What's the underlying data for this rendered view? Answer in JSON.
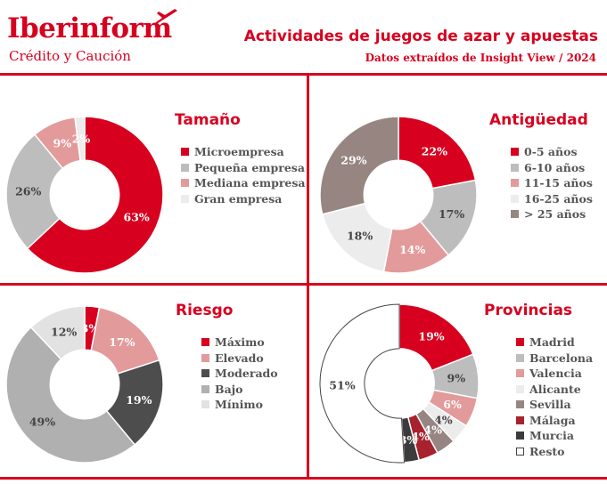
{
  "header": {
    "brand": "Iberinform",
    "brand_sub": "Crédito y Caución",
    "title": "Actividades de juegos de azar y apuestas",
    "subtitle": "Datos extraídos de Insight View / 2024"
  },
  "colors": {
    "accent": "#d7001f"
  },
  "chart_data": [
    {
      "type": "pie",
      "title": "Tamaño",
      "categories": [
        "Microempresa",
        "Pequeña empresa",
        "Mediana empresa",
        "Gran empresa"
      ],
      "values": [
        63,
        26,
        9,
        2
      ],
      "labels": [
        "63%",
        "26%",
        "9%",
        "2%"
      ],
      "colors": [
        "#d7001f",
        "#bdbdbd",
        "#e39a9a",
        "#ececec"
      ],
      "label_colors": [
        "#ffffff",
        "#444444",
        "#ffffff",
        "#ffffff"
      ]
    },
    {
      "type": "pie",
      "title": "Antigüedad",
      "categories": [
        "0-5 años",
        "6-10 años",
        "11-15 años",
        "16-25 años",
        "> 25 años"
      ],
      "values": [
        22,
        17,
        14,
        18,
        29
      ],
      "labels": [
        "22%",
        "17%",
        "14%",
        "18%",
        "29%"
      ],
      "colors": [
        "#d7001f",
        "#bdbdbd",
        "#e39a9a",
        "#ececec",
        "#968581"
      ],
      "label_colors": [
        "#ffffff",
        "#444444",
        "#ffffff",
        "#444444",
        "#ffffff"
      ]
    },
    {
      "type": "pie",
      "title": "Riesgo",
      "categories": [
        "Máximo",
        "Elevado",
        "Moderado",
        "Bajo",
        "Mínimo"
      ],
      "values": [
        3,
        17,
        19,
        49,
        12
      ],
      "labels": [
        "3%",
        "17%",
        "19%",
        "49%",
        "12%"
      ],
      "colors": [
        "#d7001f",
        "#e39a9a",
        "#4d4d4d",
        "#b0b0b0",
        "#e2e2e2"
      ],
      "label_colors": [
        "#ffffff",
        "#ffffff",
        "#ffffff",
        "#444444",
        "#444444"
      ]
    },
    {
      "type": "pie",
      "title": "Provincias",
      "categories": [
        "Madrid",
        "Barcelona",
        "Valencia",
        "Alicante",
        "Sevilla",
        "Málaga",
        "Murcia",
        "Resto"
      ],
      "values": [
        19,
        9,
        6,
        4,
        4,
        4,
        3,
        51
      ],
      "labels": [
        "19%",
        "9%",
        "6%",
        "4%",
        "4%",
        "4%",
        "3%",
        "51%"
      ],
      "colors": [
        "#d7001f",
        "#bdbdbd",
        "#e39a9a",
        "#ececec",
        "#968581",
        "#a7222c",
        "#3b3b3b",
        "#ffffff"
      ],
      "label_colors": [
        "#ffffff",
        "#444444",
        "#ffffff",
        "#444444",
        "#ffffff",
        "#ffffff",
        "#ffffff",
        "#444444"
      ]
    }
  ]
}
